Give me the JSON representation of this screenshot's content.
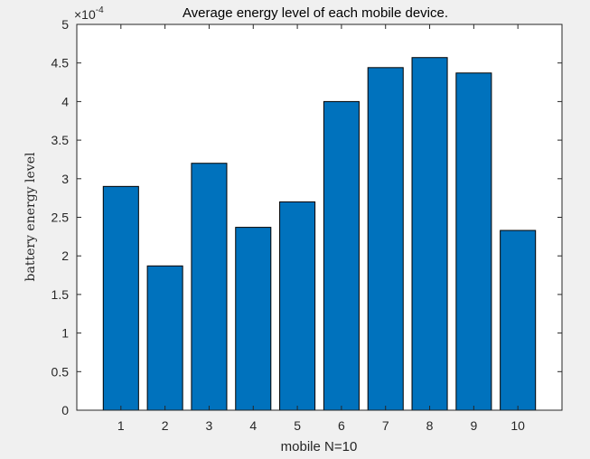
{
  "chart_data": {
    "type": "bar",
    "title": "Average energy level of each mobile device.",
    "xlabel": "mobile N=10",
    "ylabel": "battery energy level",
    "y_exponent_base": "×10",
    "y_exponent_power": "-4",
    "categories": [
      "1",
      "2",
      "3",
      "4",
      "5",
      "6",
      "7",
      "8",
      "9",
      "10"
    ],
    "values": [
      2.9,
      1.87,
      3.2,
      2.37,
      2.7,
      4.0,
      4.44,
      4.57,
      4.37,
      2.33
    ],
    "value_scale": 0.0001,
    "ylim": [
      0,
      5
    ],
    "yticks": [
      0,
      0.5,
      1,
      1.5,
      2,
      2.5,
      3,
      3.5,
      4,
      4.5,
      5
    ],
    "ytick_labels": [
      "0",
      "0.5",
      "1",
      "1.5",
      "2",
      "2.5",
      "3",
      "3.5",
      "4",
      "4.5",
      "5"
    ],
    "xlim": [
      0,
      11
    ],
    "grid": false,
    "colors": {
      "bar_fill": "#0072bd",
      "bar_edge": "#000000",
      "axes_bg": "#ffffff",
      "figure_bg": "#f0f0f0",
      "axis_color": "#262626"
    }
  }
}
